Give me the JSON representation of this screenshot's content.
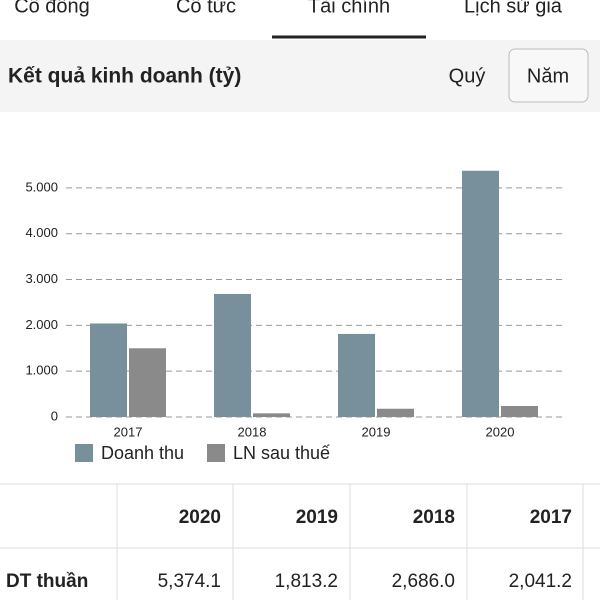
{
  "tabs": [
    "Cổ đông",
    "Cổ tức",
    "Tài chính",
    "Lịch sử giá"
  ],
  "header": {
    "title": "Kết quả kinh doanh (tỷ)",
    "buttons": [
      "Quý",
      "Năm"
    ]
  },
  "chart_data": {
    "type": "bar",
    "categories": [
      "2017",
      "2018",
      "2019",
      "2020"
    ],
    "series": [
      {
        "name": "Doanh thu",
        "color": "#78909c",
        "values": [
          2041.2,
          2686.0,
          1813.2,
          5374.1
        ]
      },
      {
        "name": "LN sau thuế",
        "color": "#8a8a8a",
        "values": [
          1500,
          80,
          180,
          240
        ]
      }
    ],
    "ylim": [
      0,
      5500
    ],
    "yticks": [
      0,
      {
        "value": 1000,
        "label": "1.000"
      },
      {
        "value": 2000,
        "label": "2.000"
      },
      {
        "value": 3000,
        "label": "3.000"
      },
      {
        "value": 4000,
        "label": "4.000"
      },
      {
        "value": 5000,
        "label": "5.000"
      }
    ],
    "grid": true
  },
  "table": {
    "header": [
      "2020",
      "2019",
      "2018",
      "2017"
    ],
    "rows": [
      [
        "DT thuần",
        "5,374.1",
        "1,813.2",
        "2,686.0",
        "2,041.2"
      ]
    ]
  }
}
